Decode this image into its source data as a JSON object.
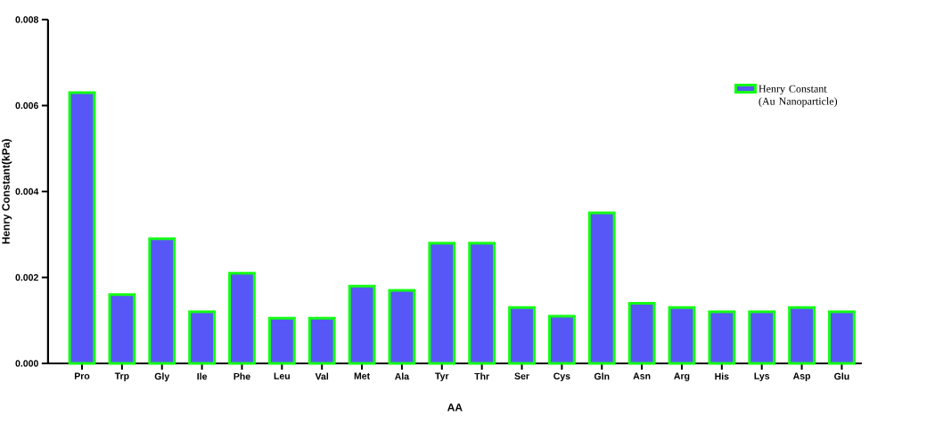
{
  "chart_data": {
    "type": "bar",
    "xlabel": "AA",
    "ylabel": "Henry Constant(kPa)",
    "categories": [
      "Pro",
      "Trp",
      "Gly",
      "Ile",
      "Phe",
      "Leu",
      "Val",
      "Met",
      "Ala",
      "Tyr",
      "Thr",
      "Ser",
      "Cys",
      "Gln",
      "Asn",
      "Arg",
      "His",
      "Lys",
      "Asp",
      "Glu"
    ],
    "series": [
      {
        "name": "Henry Constant (Au Nanoparticle)",
        "color": "#5757f7",
        "values": [
          0.0063,
          0.0016,
          0.0029,
          0.0012,
          0.0021,
          0.00105,
          0.00105,
          0.0018,
          0.0017,
          0.0028,
          0.0028,
          0.0013,
          0.0011,
          0.0035,
          0.0014,
          0.0013,
          0.0012,
          0.0012,
          0.0013,
          0.0012
        ]
      }
    ],
    "ylim": [
      0,
      0.008
    ],
    "yticks": [
      {
        "value": 0,
        "label": "0.000"
      },
      {
        "value": 0.002,
        "label": "0.002"
      },
      {
        "value": 0.004,
        "label": "0.004"
      },
      {
        "value": 0.006,
        "label": "0.006"
      },
      {
        "value": 0.008,
        "label": "0.008"
      }
    ],
    "legend": "right",
    "grid": false
  }
}
